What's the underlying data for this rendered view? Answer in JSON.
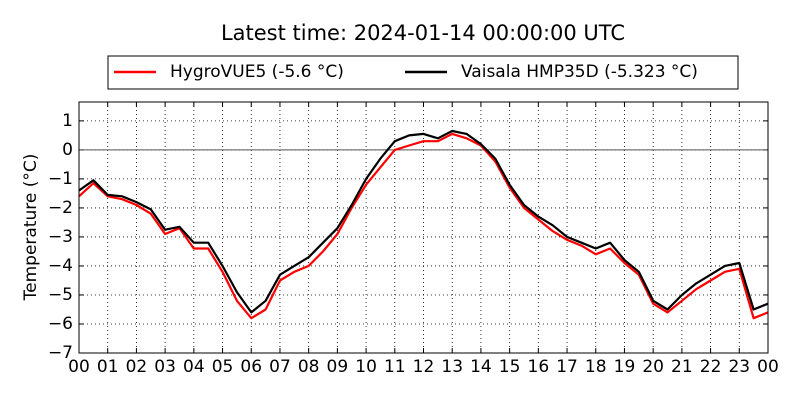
{
  "chart_data": {
    "type": "line",
    "title": "Latest time: 2024-01-14 00:00:00 UTC",
    "y_label": "Temperature (°C)",
    "x": [
      0,
      0.5,
      1,
      1.5,
      2,
      2.5,
      3,
      3.5,
      4,
      4.5,
      5,
      5.5,
      6,
      6.5,
      7,
      7.5,
      8,
      8.5,
      9,
      9.5,
      10,
      10.5,
      11,
      11.5,
      12,
      12.5,
      13,
      13.5,
      14,
      14.5,
      15,
      15.5,
      16,
      16.5,
      17,
      17.5,
      18,
      18.5,
      19,
      19.5,
      20,
      20.5,
      21,
      21.5,
      22,
      22.5,
      23,
      23.5,
      24
    ],
    "series": [
      {
        "name": "HygroVUE5 (-5.6 °C)",
        "color": "#ff0000",
        "values": [
          -1.6,
          -1.15,
          -1.6,
          -1.7,
          -1.9,
          -2.2,
          -2.9,
          -2.7,
          -3.4,
          -3.4,
          -4.2,
          -5.2,
          -5.8,
          -5.5,
          -4.5,
          -4.2,
          -4.0,
          -3.5,
          -2.9,
          -2.0,
          -1.2,
          -0.6,
          0.0,
          0.15,
          0.3,
          0.3,
          0.55,
          0.4,
          0.15,
          -0.4,
          -1.3,
          -2.0,
          -2.4,
          -2.8,
          -3.1,
          -3.3,
          -3.6,
          -3.4,
          -3.9,
          -4.3,
          -5.3,
          -5.6,
          -5.2,
          -4.8,
          -4.5,
          -4.2,
          -4.1,
          -5.8,
          -5.6
        ]
      },
      {
        "name": "Vaisala HMP35D (-5.323 °C)",
        "color": "#000000",
        "values": [
          -1.4,
          -1.05,
          -1.55,
          -1.6,
          -1.8,
          -2.05,
          -2.75,
          -2.65,
          -3.2,
          -3.2,
          -4.0,
          -4.9,
          -5.6,
          -5.2,
          -4.3,
          -4.0,
          -3.7,
          -3.2,
          -2.7,
          -1.9,
          -1.0,
          -0.3,
          0.3,
          0.5,
          0.55,
          0.4,
          0.65,
          0.55,
          0.2,
          -0.3,
          -1.2,
          -1.9,
          -2.3,
          -2.6,
          -3.0,
          -3.2,
          -3.4,
          -3.2,
          -3.8,
          -4.2,
          -5.2,
          -5.5,
          -5.0,
          -4.6,
          -4.3,
          -4.0,
          -3.9,
          -5.5,
          -5.3
        ]
      }
    ],
    "xlim": [
      0,
      24
    ],
    "xticks": [
      {
        "value": 0,
        "label": "00"
      },
      {
        "value": 1,
        "label": "01"
      },
      {
        "value": 2,
        "label": "02"
      },
      {
        "value": 3,
        "label": "03"
      },
      {
        "value": 4,
        "label": "04"
      },
      {
        "value": 5,
        "label": "05"
      },
      {
        "value": 6,
        "label": "06"
      },
      {
        "value": 7,
        "label": "07"
      },
      {
        "value": 8,
        "label": "08"
      },
      {
        "value": 9,
        "label": "09"
      },
      {
        "value": 10,
        "label": "10"
      },
      {
        "value": 11,
        "label": "11"
      },
      {
        "value": 12,
        "label": "12"
      },
      {
        "value": 13,
        "label": "13"
      },
      {
        "value": 14,
        "label": "14"
      },
      {
        "value": 15,
        "label": "15"
      },
      {
        "value": 16,
        "label": "16"
      },
      {
        "value": 17,
        "label": "17"
      },
      {
        "value": 18,
        "label": "18"
      },
      {
        "value": 19,
        "label": "19"
      },
      {
        "value": 20,
        "label": "20"
      },
      {
        "value": 21,
        "label": "21"
      },
      {
        "value": 22,
        "label": "22"
      },
      {
        "value": 23,
        "label": "23"
      },
      {
        "value": 24,
        "label": "00"
      }
    ],
    "ylim": [
      -7,
      1.65
    ],
    "yticks": [
      {
        "value": -7,
        "label": "−7"
      },
      {
        "value": -6,
        "label": "−6"
      },
      {
        "value": -5,
        "label": "−5"
      },
      {
        "value": -4,
        "label": "−4"
      },
      {
        "value": -3,
        "label": "−3"
      },
      {
        "value": -2,
        "label": "−2"
      },
      {
        "value": -1,
        "label": "−1"
      },
      0,
      1
    ],
    "grid": true,
    "legend": "top"
  }
}
